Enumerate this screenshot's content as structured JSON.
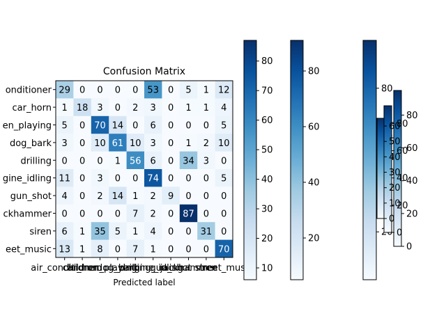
{
  "chart_data": {
    "type": "heatmap",
    "title": "Confusion Matrix",
    "xlabel": "Predicted label",
    "ylabel": "",
    "row_labels": [
      "air_conditioner",
      "car_horn",
      "children_playing",
      "dog_bark",
      "drilling",
      "engine_idling",
      "gun_shot",
      "jackhammer",
      "siren",
      "street_music"
    ],
    "row_labels_visible": [
      "onditioner",
      "car_horn",
      "en_playing",
      "dog_bark",
      "drilling",
      "gine_idling",
      "gun_shot",
      "ckhammer",
      "siren",
      "eet_music"
    ],
    "col_labels": [
      "air_conditioner",
      "car_horn",
      "children_playing",
      "dog_bark",
      "drilling",
      "engine_idling",
      "gun_shot",
      "jackhammer",
      "siren",
      "street_music"
    ],
    "values": [
      [
        29,
        0,
        0,
        0,
        0,
        53,
        0,
        5,
        1,
        12
      ],
      [
        1,
        18,
        3,
        0,
        2,
        3,
        0,
        1,
        1,
        4
      ],
      [
        5,
        0,
        70,
        14,
        0,
        6,
        0,
        0,
        0,
        5
      ],
      [
        3,
        0,
        10,
        61,
        10,
        3,
        0,
        1,
        2,
        10
      ],
      [
        0,
        0,
        0,
        1,
        56,
        6,
        0,
        34,
        3,
        0
      ],
      [
        11,
        0,
        3,
        0,
        0,
        74,
        0,
        0,
        0,
        5
      ],
      [
        4,
        0,
        2,
        14,
        1,
        2,
        9,
        0,
        0,
        0
      ],
      [
        0,
        0,
        0,
        0,
        7,
        2,
        0,
        87,
        0,
        0
      ],
      [
        6,
        1,
        35,
        5,
        1,
        4,
        0,
        0,
        31,
        0
      ],
      [
        13,
        1,
        8,
        0,
        7,
        1,
        0,
        0,
        0,
        70
      ]
    ],
    "colormap": "Blues",
    "vmin": 0,
    "vmax": 87,
    "grid": false,
    "colorbars": [
      {
        "ticks": [
          10,
          20,
          30,
          40,
          50,
          60,
          70,
          80
        ],
        "range": [
          6,
          87
        ]
      },
      {
        "ticks": [
          20,
          40,
          60,
          80
        ],
        "range": [
          5,
          91
        ]
      },
      {
        "ticks": [
          20,
          40,
          60,
          80
        ],
        "range": [
          0,
          100
        ]
      },
      {
        "ticks": [
          0,
          20,
          40,
          60,
          80
        ],
        "range": [
          0,
          95
        ]
      },
      {
        "ticks": [
          0,
          20,
          40,
          60,
          80
        ],
        "range": [
          0,
          93
        ]
      },
      {
        "ticks": [
          0,
          10,
          20,
          30,
          40,
          50,
          60
        ],
        "range": [
          0,
          65
        ]
      }
    ]
  }
}
